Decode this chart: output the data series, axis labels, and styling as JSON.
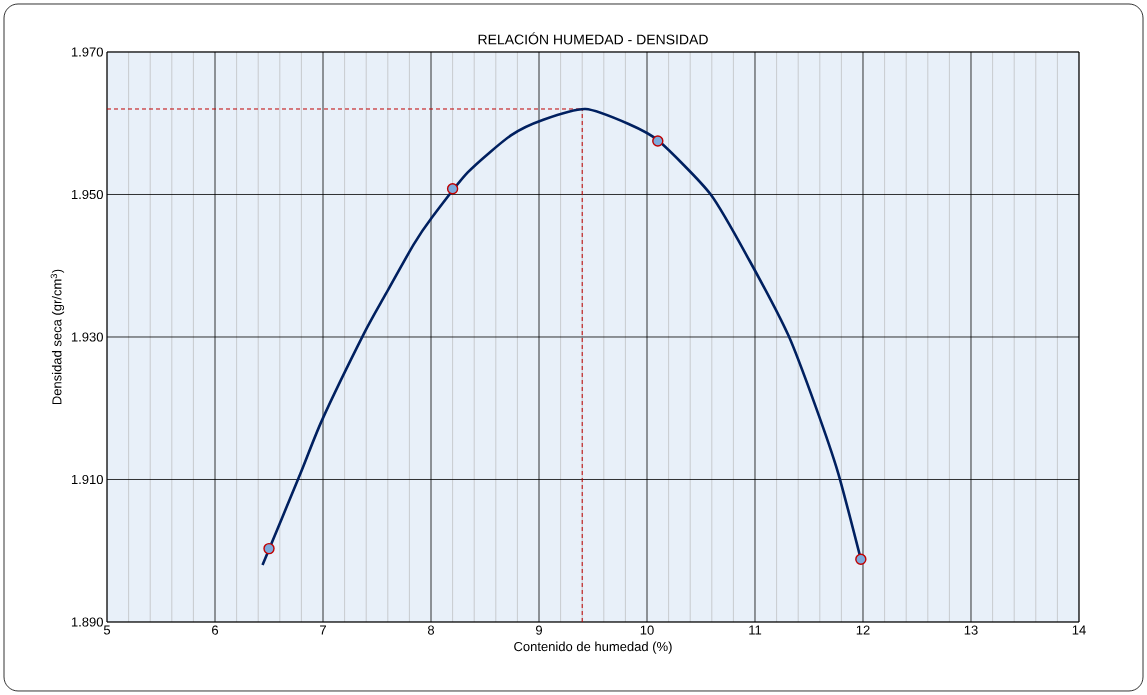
{
  "chart_data": {
    "type": "scatter",
    "title": "RELACIÓN HUMEDAD - DENSIDAD",
    "xlabel": "Contenido de humedad (%)",
    "ylabel": "Densidad seca (gr/cm$^{3}$)",
    "xlim": [
      5,
      14
    ],
    "xticks": [
      5,
      6,
      7,
      8,
      9,
      10,
      11,
      12,
      13,
      14
    ],
    "ylim": [
      1.89,
      1.97
    ],
    "yticks": [
      {
        "value": 1.89,
        "label": "1.890"
      },
      {
        "value": 1.91,
        "label": "1.910"
      },
      {
        "value": 1.93,
        "label": "1.930"
      },
      {
        "value": 1.95,
        "label": "1.950"
      },
      {
        "value": 1.97,
        "label": "1.970"
      }
    ],
    "grid": true,
    "series": [
      {
        "type": "line",
        "color": "#002060",
        "marker": "none",
        "x": [
          6.44,
          6.79,
          6.99,
          7.38,
          7.58,
          7.84,
          8.01,
          8.34,
          8.74,
          9.04,
          9.43,
          9.83,
          10.11,
          10.59,
          10.95,
          11.31,
          11.56,
          11.77,
          11.98
        ],
        "values": [
          1.898,
          1.9108,
          1.9183,
          1.9305,
          1.936,
          1.943,
          1.9468,
          1.9531,
          1.9583,
          1.9605,
          1.962,
          1.9599,
          1.9575,
          1.95,
          1.9407,
          1.9302,
          1.9203,
          1.9109,
          1.8988
        ]
      },
      {
        "color": "#c00000",
        "marker": "circle",
        "x": [
          6.5,
          8.2,
          10.1,
          11.98
        ],
        "values": [
          1.9003,
          1.9508,
          1.9575,
          1.8988
        ]
      }
    ],
    "ref_lines": [
      {
        "axis": "x",
        "value": 9.4,
        "color": "#c00000",
        "line_style": "dashed"
      },
      {
        "axis": "y",
        "value": 1.962,
        "color": "#c00000",
        "line_style": "dashed"
      }
    ]
  }
}
